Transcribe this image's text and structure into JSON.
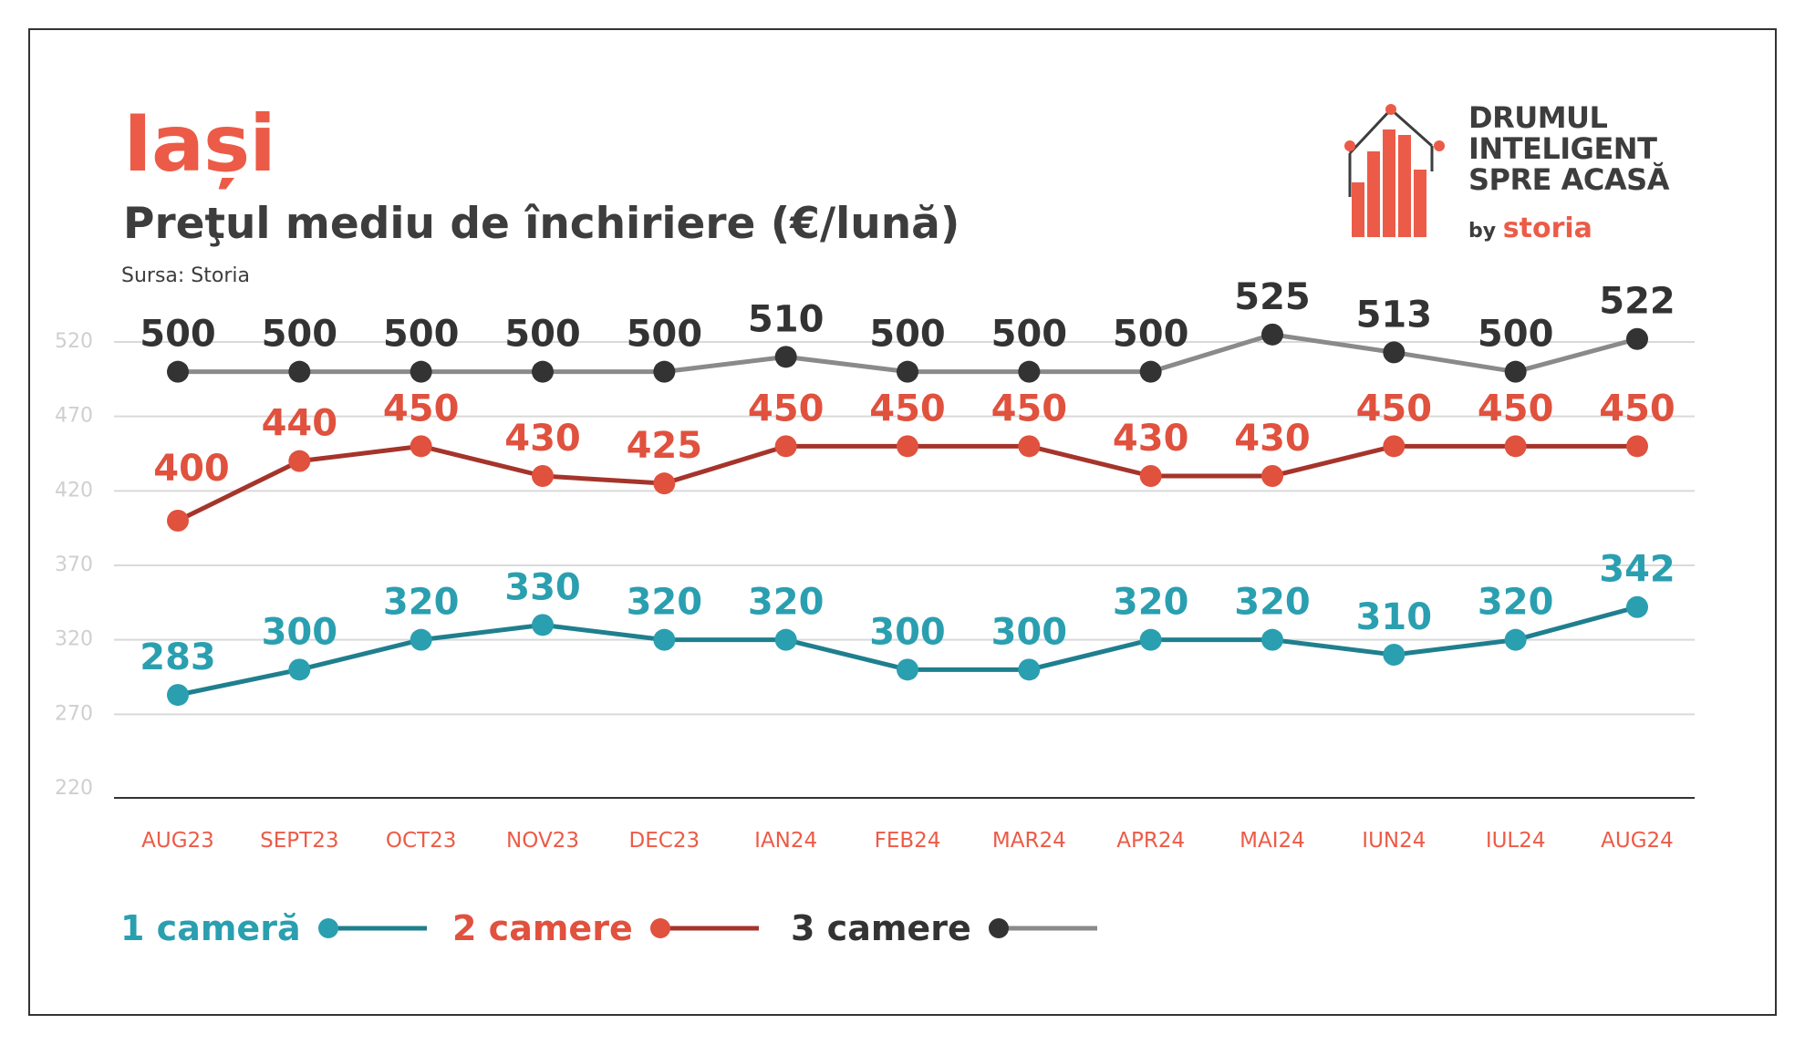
{
  "header": {
    "title": "Iași",
    "subtitle": "Preţul mediu de închiriere (€/lună)",
    "source": "Sursa: Storia"
  },
  "logo": {
    "line1": "DRUMUL",
    "line2": "INTELIGENT",
    "line3": "SPRE ACASĂ",
    "by": "by",
    "brand": "storia"
  },
  "colors": {
    "accent": "#ec5b47",
    "teal": "#2a9fb0",
    "teal_line": "#1f7f8e",
    "red": "#e0513e",
    "red_line": "#a5342b",
    "dark": "#333333",
    "gray_line": "#8a8a8a",
    "grid": "#d9d9d9",
    "axis": "#333333"
  },
  "chart_data": {
    "type": "line",
    "categories": [
      "AUG23",
      "SEPT23",
      "OCT23",
      "NOV23",
      "DEC23",
      "IAN24",
      "FEB24",
      "MAR24",
      "APR24",
      "MAI24",
      "IUN24",
      "IUL24",
      "AUG24"
    ],
    "yticks": [
      520,
      470,
      420,
      370,
      320,
      270,
      220
    ],
    "ylim": [
      220,
      520
    ],
    "grid": true,
    "legend_position": "bottom-left",
    "series": [
      {
        "name": "1 cameră",
        "color": "#2a9fb0",
        "line_color": "#1f7f8e",
        "values": [
          283,
          300,
          320,
          330,
          320,
          320,
          300,
          300,
          320,
          320,
          310,
          320,
          342
        ]
      },
      {
        "name": "2 camere",
        "color": "#e0513e",
        "line_color": "#a5342b",
        "values": [
          400,
          440,
          450,
          430,
          425,
          450,
          450,
          450,
          430,
          430,
          450,
          450,
          450
        ]
      },
      {
        "name": "3 camere",
        "color": "#333333",
        "line_color": "#8a8a8a",
        "values": [
          500,
          500,
          500,
          500,
          500,
          510,
          500,
          500,
          500,
          525,
          513,
          500,
          522
        ]
      }
    ]
  }
}
